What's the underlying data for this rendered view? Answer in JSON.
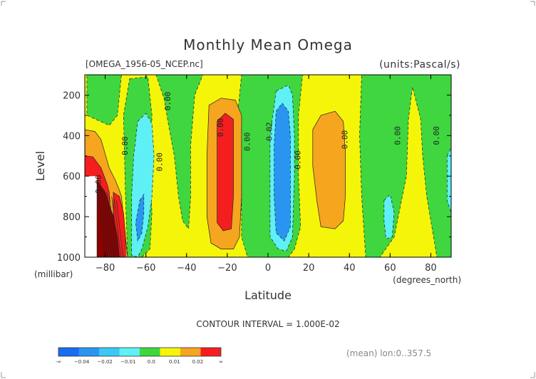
{
  "chart_data": {
    "type": "heatmap",
    "title": "Monthly Mean Omega",
    "file_label": "[OMEGA_1956-05_NCEP.nc]",
    "units_label": "(units:Pascal/s)",
    "xlabel": "Latitude",
    "x_units": "(degrees_north)",
    "ylabel": "Level",
    "y_units": "(millibar)",
    "xlim": [
      -90,
      90
    ],
    "ylim": [
      1000,
      100
    ],
    "x_ticks": [
      -80,
      -60,
      -40,
      -20,
      0,
      20,
      40,
      60,
      80
    ],
    "x_tick_labels": [
      "−80",
      "−60",
      "−40",
      "−20",
      "0",
      "20",
      "40",
      "60",
      "80"
    ],
    "y_ticks": [
      200,
      400,
      600,
      800,
      1000
    ],
    "y_tick_labels": [
      "200",
      "400",
      "600",
      "800",
      "1000"
    ],
    "contour_interval_label": "CONTOUR INTERVAL = 1.000E-02",
    "averaging_label": "(mean)  lon:0..357.5",
    "contour_labels": [
      {
        "text": "0.00",
        "lat": -69,
        "lev": 450
      },
      {
        "text": "0.00",
        "lat": -52,
        "lev": 530
      },
      {
        "text": "0.00",
        "lat": -48,
        "lev": 230
      },
      {
        "text": "0.00",
        "lat": -22,
        "lev": 360
      },
      {
        "text": "0.00",
        "lat": -9,
        "lev": 430
      },
      {
        "text": "0.02",
        "lat": 2,
        "lev": 380
      },
      {
        "text": "0.00",
        "lat": 16,
        "lev": 520
      },
      {
        "text": "0.00",
        "lat": 39,
        "lev": 420
      },
      {
        "text": "0.00",
        "lat": 65,
        "lev": 400
      },
      {
        "text": "0.00",
        "lat": 84,
        "lev": 400
      },
      {
        "text": "0.00",
        "lat": -82,
        "lev": 640
      }
    ],
    "legend": {
      "colors": [
        "#1a6cf0",
        "#2a95f0",
        "#3cc8f5",
        "#5ef0f5",
        "#3fd63f",
        "#f5f50a",
        "#f5a51e",
        "#f51e1e"
      ],
      "tick_labels": [
        "-∞",
        "−0.04",
        "−0.02",
        "−0.01",
        "0.0",
        "0.01",
        "0.02",
        "∞"
      ]
    },
    "regions": [
      {
        "value": 0.005,
        "color": "#f5f50a",
        "poly": [
          [
            -90,
            100
          ],
          [
            90,
            100
          ],
          [
            90,
            1000
          ],
          [
            -90,
            1000
          ]
        ]
      },
      {
        "value": -0.005,
        "color": "#3fd63f",
        "poly": [
          [
            -89,
            100
          ],
          [
            -72,
            100
          ],
          [
            -74,
            300
          ],
          [
            -78,
            350
          ],
          [
            -89,
            300
          ]
        ]
      },
      {
        "value": -0.005,
        "color": "#3fd63f",
        "poly": [
          [
            -68,
            120
          ],
          [
            -59,
            110
          ],
          [
            -57,
            300
          ],
          [
            -58,
            600
          ],
          [
            -57,
            780
          ],
          [
            -58,
            960
          ],
          [
            -62,
            1000
          ],
          [
            -69,
            1000
          ],
          [
            -70,
            700
          ],
          [
            -71,
            300
          ]
        ]
      },
      {
        "value": -0.005,
        "color": "#3fd63f",
        "poly": [
          [
            -55,
            100
          ],
          [
            -32,
            100
          ],
          [
            -36,
            200
          ],
          [
            -38,
            450
          ],
          [
            -38,
            700
          ],
          [
            -39,
            860
          ],
          [
            -42,
            820
          ],
          [
            -44,
            700
          ],
          [
            -46,
            500
          ],
          [
            -49,
            340
          ],
          [
            -51,
            220
          ]
        ]
      },
      {
        "value": -0.005,
        "color": "#3fd63f",
        "poly": [
          [
            -13,
            100
          ],
          [
            17,
            100
          ],
          [
            15,
            300
          ],
          [
            15,
            600
          ],
          [
            16,
            850
          ],
          [
            13,
            960
          ],
          [
            10,
            1000
          ],
          [
            -10,
            1000
          ],
          [
            -13,
            900
          ],
          [
            -13,
            700
          ],
          [
            -14,
            500
          ],
          [
            -15,
            300
          ]
        ]
      },
      {
        "value": -0.005,
        "color": "#3fd63f",
        "poly": [
          [
            46,
            100
          ],
          [
            90,
            100
          ],
          [
            90,
            1000
          ],
          [
            83,
            1000
          ],
          [
            78,
            700
          ],
          [
            76,
            500
          ],
          [
            75,
            320
          ],
          [
            71,
            160
          ],
          [
            69,
            320
          ],
          [
            68,
            600
          ],
          [
            65,
            750
          ],
          [
            62,
            900
          ],
          [
            55,
            1000
          ],
          [
            48,
            1000
          ],
          [
            46,
            700
          ],
          [
            45,
            400
          ]
        ]
      },
      {
        "value": 0.015,
        "color": "#f5a51e",
        "poly": [
          [
            -90,
            370
          ],
          [
            -85,
            380
          ],
          [
            -82,
            420
          ],
          [
            -78,
            560
          ],
          [
            -75,
            620
          ],
          [
            -73,
            670
          ],
          [
            -72,
            700
          ],
          [
            -70,
            900
          ],
          [
            -69,
            1000
          ],
          [
            -90,
            1000
          ]
        ]
      },
      {
        "value": 0.015,
        "color": "#f5a51e",
        "poly": [
          [
            -29,
            250
          ],
          [
            -23,
            215
          ],
          [
            -16,
            225
          ],
          [
            -13,
            300
          ],
          [
            -13,
            500
          ],
          [
            -13,
            700
          ],
          [
            -14,
            900
          ],
          [
            -17,
            960
          ],
          [
            -23,
            960
          ],
          [
            -28,
            930
          ],
          [
            -30,
            800
          ],
          [
            -30,
            500
          ]
        ]
      },
      {
        "value": 0.015,
        "color": "#f5a51e",
        "poly": [
          [
            22,
            370
          ],
          [
            26,
            300
          ],
          [
            33,
            280
          ],
          [
            37,
            330
          ],
          [
            38,
            480
          ],
          [
            38,
            700
          ],
          [
            37,
            820
          ],
          [
            33,
            860
          ],
          [
            26,
            850
          ],
          [
            24,
            720
          ],
          [
            22,
            550
          ]
        ]
      },
      {
        "value": 0.025,
        "color": "#f51e1e",
        "poly": [
          [
            -90,
            500
          ],
          [
            -86,
            505
          ],
          [
            -82,
            560
          ],
          [
            -79,
            640
          ],
          [
            -78,
            680
          ],
          [
            -78,
            1000
          ],
          [
            -90,
            1000
          ]
        ]
      },
      {
        "value": 0.025,
        "color": "#f51e1e",
        "poly": [
          [
            -76,
            680
          ],
          [
            -73,
            700
          ],
          [
            -71,
            780
          ],
          [
            -70,
            900
          ],
          [
            -70,
            1000
          ],
          [
            -76,
            1000
          ]
        ]
      },
      {
        "value": 0.025,
        "color": "#f51e1e",
        "poly": [
          [
            -25,
            330
          ],
          [
            -21,
            290
          ],
          [
            -17,
            320
          ],
          [
            -17,
            500
          ],
          [
            -17,
            700
          ],
          [
            -18,
            860
          ],
          [
            -22,
            870
          ],
          [
            -25,
            830
          ],
          [
            -25,
            600
          ]
        ]
      },
      {
        "value": -0.015,
        "color": "#5ef0f5",
        "poly": [
          [
            -64,
            330
          ],
          [
            -60,
            290
          ],
          [
            -57,
            340
          ],
          [
            -56,
            500
          ],
          [
            -57,
            700
          ],
          [
            -59,
            850
          ],
          [
            -62,
            960
          ],
          [
            -64,
            1000
          ],
          [
            -67,
            990
          ],
          [
            -67,
            700
          ],
          [
            -66,
            500
          ]
        ]
      },
      {
        "value": -0.015,
        "color": "#5ef0f5",
        "poly": [
          [
            4,
            180
          ],
          [
            10,
            150
          ],
          [
            12,
            200
          ],
          [
            13,
            400
          ],
          [
            13,
            600
          ],
          [
            12,
            900
          ],
          [
            9,
            970
          ],
          [
            5,
            960
          ],
          [
            1,
            900
          ],
          [
            1,
            700
          ],
          [
            1,
            400
          ]
        ]
      },
      {
        "value": -0.015,
        "color": "#5ef0f5",
        "poly": [
          [
            57,
            720
          ],
          [
            60,
            690
          ],
          [
            62,
            780
          ],
          [
            61,
            900
          ],
          [
            58,
            910
          ],
          [
            57,
            820
          ]
        ]
      },
      {
        "value": -0.015,
        "color": "#5ef0f5",
        "poly": [
          [
            88,
            500
          ],
          [
            90,
            460
          ],
          [
            90,
            780
          ],
          [
            88,
            720
          ]
        ]
      },
      {
        "value": -0.025,
        "color": "#2a95f0",
        "poly": [
          [
            4,
            280
          ],
          [
            7,
            240
          ],
          [
            10,
            280
          ],
          [
            11,
            400
          ],
          [
            11,
            600
          ],
          [
            11,
            850
          ],
          [
            8,
            920
          ],
          [
            4,
            880
          ],
          [
            3,
            700
          ],
          [
            3,
            450
          ]
        ]
      },
      {
        "value": -0.025,
        "color": "#2a95f0",
        "poly": [
          [
            -63,
            720
          ],
          [
            -61,
            690
          ],
          [
            -61,
            780
          ],
          [
            -62,
            880
          ],
          [
            -64,
            920
          ],
          [
            -65,
            830
          ]
        ]
      },
      {
        "value": 0.005,
        "color": "#ffffff",
        "poly": [
          [
            -90,
            600
          ],
          [
            -84,
            600
          ],
          [
            -84,
            1000
          ],
          [
            -90,
            1000
          ]
        ]
      },
      {
        "value": 0.035,
        "color": "#8c0000",
        "poly": [
          [
            -84,
            620
          ],
          [
            -80,
            680
          ],
          [
            -76,
            800
          ],
          [
            -74,
            900
          ],
          [
            -73,
            1000
          ],
          [
            -84,
            1000
          ]
        ]
      }
    ],
    "colormap_description": "filled contours, blue = negative omega, red = positive omega"
  }
}
